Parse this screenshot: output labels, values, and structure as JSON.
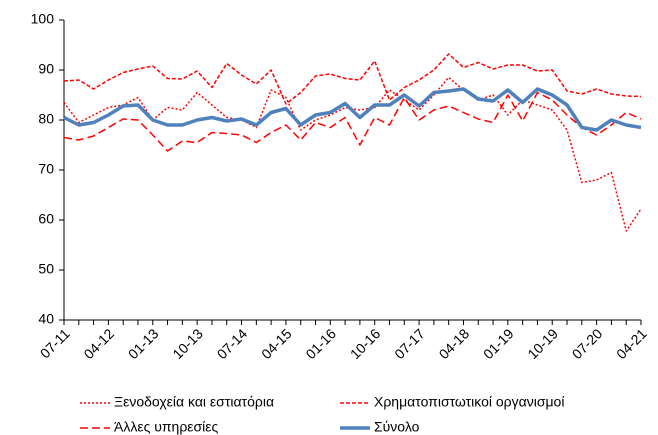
{
  "chart_data": {
    "type": "line",
    "categories": [
      "07-11",
      null,
      null,
      "04-12",
      null,
      null,
      "01-13",
      null,
      null,
      "10-13",
      null,
      null,
      "07-14",
      null,
      null,
      "04-15",
      null,
      null,
      "01-16",
      null,
      null,
      "10-16",
      null,
      null,
      "07-17",
      null,
      null,
      "04-18",
      null,
      null,
      "01-19",
      null,
      null,
      "10-19",
      null,
      null,
      "07-20",
      null,
      null,
      "04-21"
    ],
    "series": [
      {
        "name": "Ξενοδοχεία και εστιατόρια",
        "color": "#ff0000",
        "linestyle": "dotted",
        "width": 1.5,
        "values": [
          83.5,
          79.5,
          81,
          82.5,
          83,
          84.5,
          80,
          82.5,
          82,
          85.5,
          83,
          80.5,
          80,
          78.5,
          86,
          84.5,
          78,
          80,
          81,
          82.5,
          82,
          82.5,
          86,
          84,
          82,
          85,
          88.5,
          86,
          84,
          85,
          81,
          84,
          83,
          82,
          78,
          67.5,
          68,
          69.5,
          57.8,
          62.2
        ]
      },
      {
        "name": "Χρηματοπιστωτικοί οργανισμοί",
        "color": "#ff0000",
        "linestyle": "dashed",
        "width": 1.5,
        "values": [
          87.8,
          88,
          86.2,
          88,
          89.5,
          90.2,
          90.8,
          88.3,
          88.2,
          89.8,
          86.5,
          91.3,
          89,
          87.2,
          90,
          83.2,
          85.5,
          88.8,
          89.2,
          88.3,
          88,
          91.8,
          84,
          86.5,
          88,
          90,
          93.2,
          90.5,
          91.5,
          90.2,
          91,
          91,
          89.8,
          90,
          85.8,
          85.2,
          86.2,
          85.2,
          84.8,
          84.7
        ]
      },
      {
        "name": "Άλλες υπηρεσίες",
        "color": "#ff0000",
        "linestyle": "longdash",
        "width": 1.5,
        "values": [
          76.5,
          76,
          76.8,
          78.5,
          80.2,
          80,
          77,
          73.8,
          75.8,
          75.5,
          77.5,
          77.3,
          77,
          75.5,
          77.5,
          79,
          76,
          79.5,
          78.5,
          80.5,
          75,
          80.5,
          79,
          84.5,
          80,
          82,
          82.8,
          81.5,
          80.2,
          79.5,
          85,
          79.8,
          85.5,
          84,
          81,
          78.5,
          77,
          79,
          81.5,
          80.2
        ]
      },
      {
        "name": "Σύνολο",
        "color": "#4f81bd",
        "linestyle": "solid",
        "width": 3.5,
        "values": [
          80.5,
          79,
          79.5,
          81,
          82.8,
          83,
          80,
          79,
          79,
          80,
          80.5,
          79.8,
          80.2,
          79,
          81.5,
          82.3,
          79,
          81,
          81.5,
          83.3,
          80.5,
          83,
          83,
          85,
          82.8,
          85.5,
          85.8,
          86.2,
          84.2,
          83.8,
          86,
          83.5,
          86.2,
          85,
          83,
          78.5,
          78,
          80,
          79,
          78.5
        ]
      }
    ],
    "ylim": [
      40,
      100
    ],
    "yticks": [
      40,
      50,
      60,
      70,
      80,
      90,
      100
    ],
    "grid": false,
    "legend": "bottom"
  }
}
